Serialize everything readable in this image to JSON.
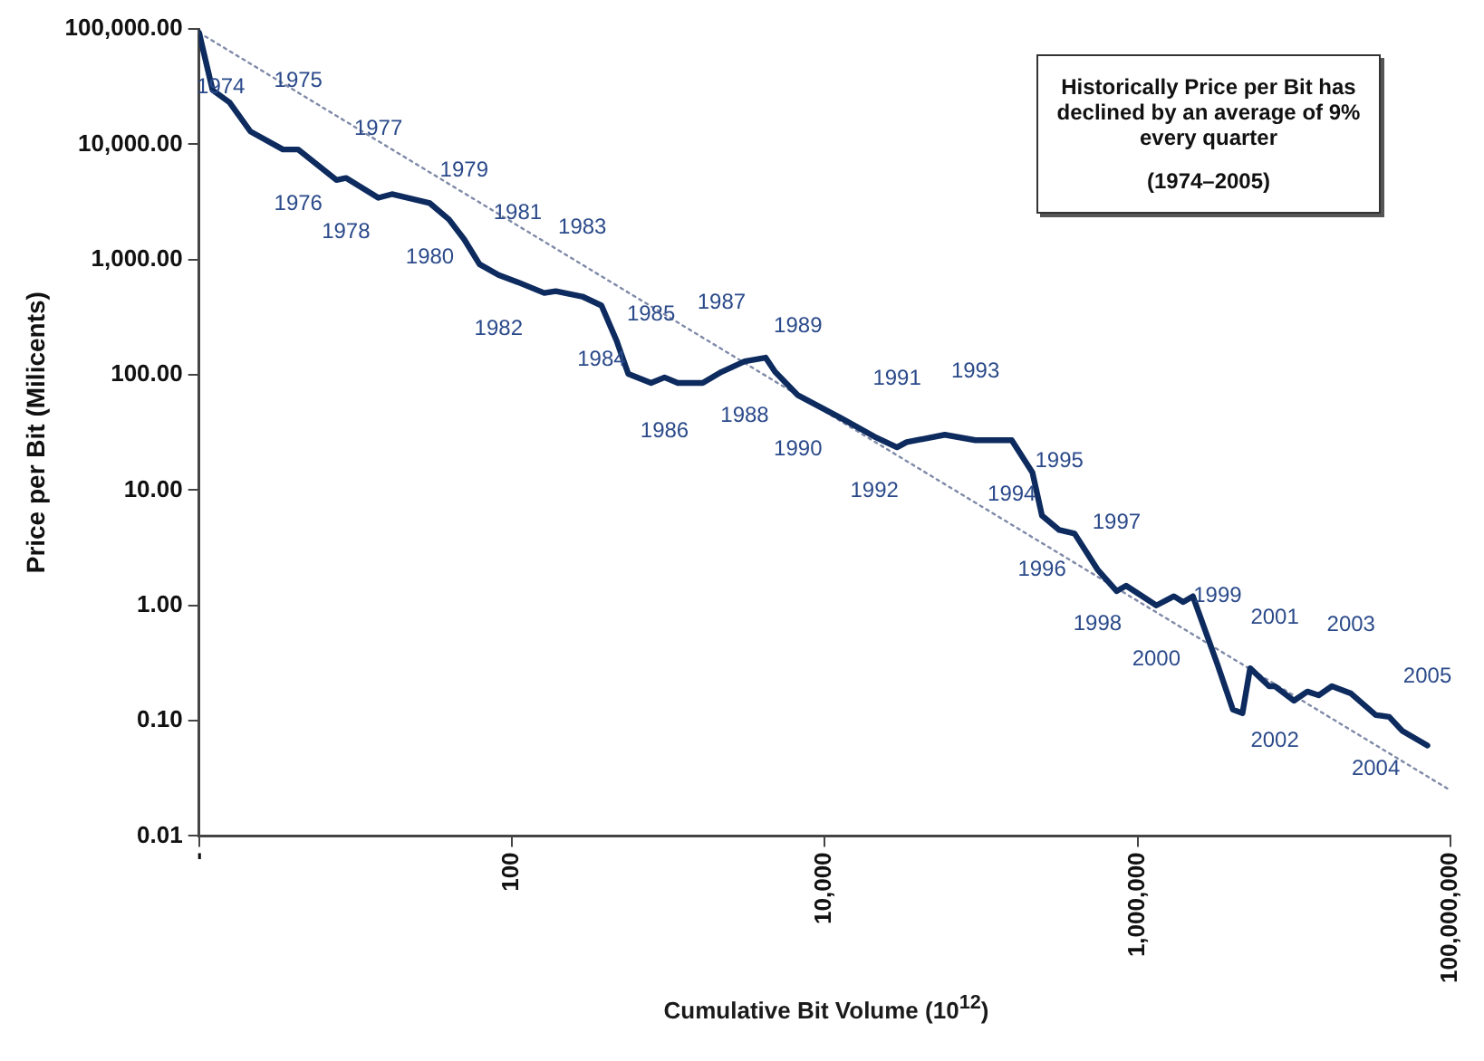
{
  "chart_data": {
    "type": "line",
    "log": "xy",
    "xlabel": "Cumulative Bit Volume (10$^{12}$)",
    "ylabel": "Price per Bit (Milicents)",
    "xlim": [
      1,
      100000000
    ],
    "ylim": [
      0.01,
      100000
    ],
    "xticks": [
      {
        "value": 1,
        "label": "-"
      },
      {
        "value": 100,
        "label": "100"
      },
      {
        "value": 10000,
        "label": "10,000"
      },
      {
        "value": 1000000,
        "label": "1,000,000"
      },
      {
        "value": 100000000,
        "label": "100,000,000"
      }
    ],
    "yticks": [
      {
        "value": 0.01,
        "label": "0.01"
      },
      {
        "value": 0.1,
        "label": "0.10"
      },
      {
        "value": 1,
        "label": "1.00"
      },
      {
        "value": 10,
        "label": "10.00"
      },
      {
        "value": 100,
        "label": "100.00"
      },
      {
        "value": 1000,
        "label": "1,000.00"
      },
      {
        "value": 10000,
        "label": "10,000.00"
      },
      {
        "value": 100000,
        "label": "100,000.00"
      }
    ],
    "series": [
      {
        "color": "#0d2b5e",
        "line_style": "solid",
        "x": [
          1,
          1.22,
          1.57,
          2.13,
          3.44,
          4.31,
          7.55,
          8.69,
          14.0,
          17.1,
          29.9,
          39.6,
          49.5,
          62.1,
          82.2,
          109,
          161,
          191,
          282,
          374,
          469,
          555,
          776,
          946,
          1150,
          1660,
          2190,
          3080,
          4190,
          4820,
          6750,
          12900,
          20800,
          29000,
          33400,
          58600,
          91900,
          157000,
          213000,
          245000,
          316000,
          396000,
          555000,
          735000,
          846000,
          1320000,
          1710000,
          1960000,
          2260000,
          3250000,
          4070000,
          4690000,
          5250000,
          6940000,
          7550000,
          10000000,
          12200000,
          14400000,
          17500000,
          23200000,
          33400000,
          40700000,
          49500000,
          71400000
        ],
        "values": [
          93000,
          29500,
          23000,
          12900,
          9000,
          9000,
          4900,
          5100,
          3430,
          3690,
          3080,
          2230,
          1500,
          910,
          735,
          637,
          513,
          532,
          478,
          399,
          195,
          102,
          85,
          95,
          85,
          85,
          106,
          131,
          141,
          106,
          66.4,
          41.7,
          29.1,
          23.5,
          26.1,
          30.2,
          27.1,
          27.1,
          14.2,
          6.01,
          4.51,
          4.2,
          2.05,
          1.33,
          1.48,
          1.0,
          1.2,
          1.07,
          1.2,
          0.306,
          0.125,
          0.116,
          0.285,
          0.199,
          0.199,
          0.149,
          0.179,
          0.166,
          0.199,
          0.172,
          0.112,
          0.108,
          0.0812,
          0.061
        ]
      },
      {
        "color": "#7f8aa8",
        "line_style": "dotted",
        "x": [
          1,
          100000000
        ],
        "values": [
          93000,
          0.0249
        ]
      }
    ],
    "annotations": [
      "Historically Price per Bit has declined by an average of 9% every quarter",
      "(1974–2005)",
      {
        "text": "1974",
        "x": 1,
        "y": 93000
      },
      {
        "text": "1975",
        "x": 4.31,
        "y": 9000
      },
      {
        "text": "1976",
        "x": 4.31,
        "y": 9000
      },
      {
        "text": "1977",
        "x": 14.0,
        "y": 3430
      },
      {
        "text": "1978",
        "x": 8.69,
        "y": 5100
      },
      {
        "text": "1979",
        "x": 49.5,
        "y": 1500
      },
      {
        "text": "1980",
        "x": 29.9,
        "y": 3080
      },
      {
        "text": "1981",
        "x": 109,
        "y": 637
      },
      {
        "text": "1982",
        "x": 82.2,
        "y": 735
      },
      {
        "text": "1983",
        "x": 282,
        "y": 478
      },
      {
        "text": "1984",
        "x": 374,
        "y": 399
      },
      {
        "text": "1985",
        "x": 776,
        "y": 85
      },
      {
        "text": "1986",
        "x": 946,
        "y": 95
      },
      {
        "text": "1987",
        "x": 2190,
        "y": 106
      },
      {
        "text": "1988",
        "x": 3080,
        "y": 131
      },
      {
        "text": "1989",
        "x": 6750,
        "y": 66.4
      },
      {
        "text": "1990",
        "x": 6750,
        "y": 66.4
      },
      {
        "text": "1991",
        "x": 29000,
        "y": 23.5
      },
      {
        "text": "1992",
        "x": 20800,
        "y": 29.1
      },
      {
        "text": "1993",
        "x": 91900,
        "y": 27.1
      },
      {
        "text": "1994",
        "x": 157000,
        "y": 27.1
      },
      {
        "text": "1995",
        "x": 316000,
        "y": 4.51
      },
      {
        "text": "1996",
        "x": 245000,
        "y": 6.01
      },
      {
        "text": "1997",
        "x": 735000,
        "y": 1.33
      },
      {
        "text": "1998",
        "x": 555000,
        "y": 2.05
      },
      {
        "text": "1999",
        "x": 3250000,
        "y": 0.306
      },
      {
        "text": "2000",
        "x": 1320000,
        "y": 1.0
      },
      {
        "text": "2001",
        "x": 7550000,
        "y": 0.199
      },
      {
        "text": "2002",
        "x": 7550000,
        "y": 0.199
      },
      {
        "text": "2003",
        "x": 23200000,
        "y": 0.172
      },
      {
        "text": "2004",
        "x": 33400000,
        "y": 0.112
      },
      {
        "text": "2005",
        "x": 71400000,
        "y": 0.061
      }
    ]
  }
}
